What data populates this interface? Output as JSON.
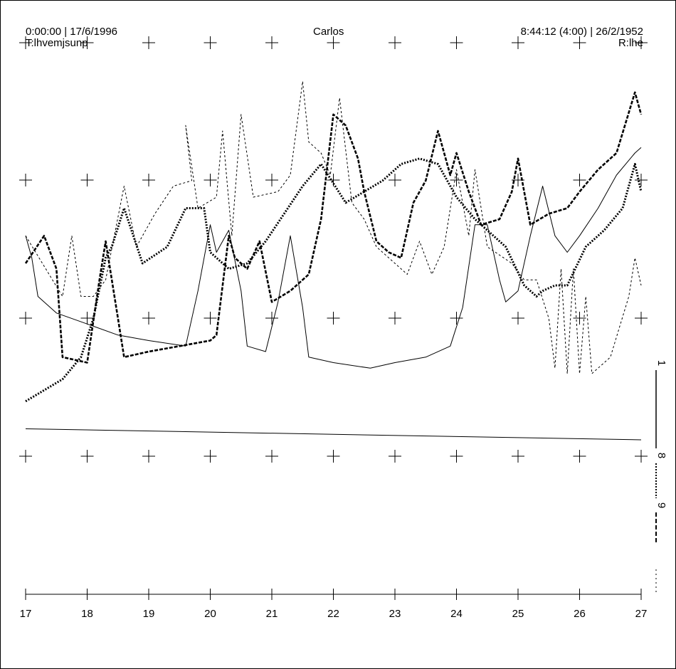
{
  "header": {
    "left_line1": "0:00:00 | 17/6/1996",
    "left_line2": "T:lhvemjsunp",
    "center": "Carlos",
    "right_line1": "8:44:12 (4:00) | 26/2/1952",
    "right_line2": "R:lhe"
  },
  "chart_data": {
    "type": "line",
    "title": "",
    "xlabel": "",
    "ylabel": "",
    "xlim": [
      17,
      27
    ],
    "ylim": [
      0,
      10
    ],
    "grid": "crosshair-markers",
    "x_ticks": [
      "17",
      "18",
      "19",
      "20",
      "21",
      "22",
      "23",
      "24",
      "25",
      "26",
      "27"
    ],
    "right_labels": [
      "1",
      "8",
      "9"
    ],
    "series": [
      {
        "style": "dotted-thin",
        "points": [
          [
            17,
            6.5
          ],
          [
            17.6,
            5.4
          ],
          [
            17.75,
            6.5
          ],
          [
            17.9,
            5.4
          ],
          [
            18.1,
            5.4
          ],
          [
            18.3,
            5.7
          ],
          [
            18.6,
            7.4
          ],
          [
            18.8,
            6.3
          ],
          [
            19.1,
            6.9
          ],
          [
            19.4,
            7.4
          ],
          [
            19.7,
            7.5
          ],
          [
            19.6,
            8.5
          ],
          [
            19.8,
            7.0
          ],
          [
            20.1,
            7.2
          ],
          [
            20.2,
            8.4
          ],
          [
            20.35,
            6.5
          ],
          [
            20.5,
            8.7
          ],
          [
            20.7,
            7.2
          ],
          [
            21.1,
            7.3
          ],
          [
            21.3,
            7.6
          ],
          [
            21.5,
            9.3
          ],
          [
            21.6,
            8.2
          ],
          [
            21.8,
            8.0
          ],
          [
            21.95,
            7.6
          ],
          [
            22.1,
            9.0
          ],
          [
            22.3,
            7.1
          ],
          [
            22.5,
            6.8
          ],
          [
            22.7,
            6.3
          ],
          [
            23.0,
            6.0
          ],
          [
            23.2,
            5.8
          ],
          [
            23.4,
            6.4
          ],
          [
            23.6,
            5.8
          ],
          [
            23.8,
            6.3
          ],
          [
            24.0,
            7.7
          ],
          [
            24.2,
            6.5
          ],
          [
            24.3,
            7.7
          ],
          [
            24.5,
            6.3
          ],
          [
            24.9,
            6.0
          ],
          [
            25.1,
            5.7
          ],
          [
            25.3,
            5.7
          ],
          [
            25.5,
            5.0
          ],
          [
            25.6,
            4.1
          ],
          [
            25.7,
            5.9
          ],
          [
            25.8,
            4.0
          ],
          [
            25.9,
            5.9
          ],
          [
            26.0,
            4.0
          ],
          [
            26.1,
            5.4
          ],
          [
            26.2,
            4.0
          ],
          [
            26.5,
            4.3
          ],
          [
            26.8,
            5.4
          ],
          [
            26.9,
            6.1
          ],
          [
            27,
            5.6
          ]
        ]
      },
      {
        "style": "dashed-thick",
        "points": [
          [
            17,
            6.0
          ],
          [
            17.3,
            6.5
          ],
          [
            17.5,
            5.9
          ],
          [
            17.6,
            4.3
          ],
          [
            18,
            4.2
          ],
          [
            18.2,
            5.7
          ],
          [
            18.3,
            6.4
          ],
          [
            18.5,
            5.0
          ],
          [
            18.6,
            4.3
          ],
          [
            19,
            4.4
          ],
          [
            19.5,
            4.5
          ],
          [
            20,
            4.6
          ],
          [
            20.1,
            4.7
          ],
          [
            20.3,
            6.5
          ],
          [
            20.4,
            6.1
          ],
          [
            20.6,
            5.9
          ],
          [
            20.8,
            6.4
          ],
          [
            21,
            5.3
          ],
          [
            21.3,
            5.5
          ],
          [
            21.6,
            5.8
          ],
          [
            21.8,
            6.8
          ],
          [
            22,
            8.7
          ],
          [
            22.2,
            8.5
          ],
          [
            22.4,
            7.9
          ],
          [
            22.5,
            7.3
          ],
          [
            22.7,
            6.4
          ],
          [
            22.9,
            6.2
          ],
          [
            23.1,
            6.1
          ],
          [
            23.3,
            7.1
          ],
          [
            23.5,
            7.5
          ],
          [
            23.7,
            8.4
          ],
          [
            23.9,
            7.6
          ],
          [
            24.0,
            8.0
          ],
          [
            24.2,
            7.3
          ],
          [
            24.4,
            6.7
          ],
          [
            24.7,
            6.8
          ],
          [
            24.9,
            7.3
          ],
          [
            25.0,
            7.9
          ],
          [
            25.2,
            6.7
          ],
          [
            25.5,
            6.9
          ],
          [
            25.8,
            7.0
          ],
          [
            26.0,
            7.3
          ],
          [
            26.3,
            7.7
          ],
          [
            26.6,
            8.0
          ],
          [
            26.9,
            9.1
          ],
          [
            27,
            8.7
          ]
        ]
      },
      {
        "style": "dotted-thick",
        "points": [
          [
            17,
            3.5
          ],
          [
            17.3,
            3.7
          ],
          [
            17.6,
            3.9
          ],
          [
            17.9,
            4.3
          ],
          [
            18.1,
            5.0
          ],
          [
            18.3,
            6.1
          ],
          [
            18.4,
            6.3
          ],
          [
            18.6,
            7.0
          ],
          [
            18.9,
            6.0
          ],
          [
            19.3,
            6.3
          ],
          [
            19.6,
            7.0
          ],
          [
            19.9,
            7.0
          ],
          [
            20.0,
            6.2
          ],
          [
            20.3,
            5.9
          ],
          [
            20.6,
            6.0
          ],
          [
            20.9,
            6.4
          ],
          [
            21.2,
            6.9
          ],
          [
            21.5,
            7.4
          ],
          [
            21.8,
            7.8
          ],
          [
            22.2,
            7.1
          ],
          [
            22.5,
            7.3
          ],
          [
            22.8,
            7.5
          ],
          [
            23.1,
            7.8
          ],
          [
            23.4,
            7.9
          ],
          [
            23.7,
            7.8
          ],
          [
            24.0,
            7.2
          ],
          [
            24.3,
            6.8
          ],
          [
            24.5,
            6.6
          ],
          [
            24.8,
            6.3
          ],
          [
            25.1,
            5.6
          ],
          [
            25.3,
            5.4
          ],
          [
            25.4,
            5.5
          ],
          [
            25.6,
            5.6
          ],
          [
            25.8,
            5.6
          ],
          [
            26.1,
            6.3
          ],
          [
            26.4,
            6.6
          ],
          [
            26.7,
            7.0
          ],
          [
            26.9,
            7.8
          ],
          [
            27,
            7.3
          ]
        ]
      },
      {
        "style": "solid-thin",
        "points": [
          [
            17,
            6.5
          ],
          [
            17.1,
            6.1
          ],
          [
            17.2,
            5.4
          ],
          [
            17.5,
            5.1
          ],
          [
            18,
            4.9
          ],
          [
            18.5,
            4.7
          ],
          [
            19,
            4.6
          ],
          [
            19.6,
            4.5
          ],
          [
            19.8,
            5.5
          ],
          [
            20,
            6.7
          ],
          [
            20.1,
            6.2
          ],
          [
            20.3,
            6.6
          ],
          [
            20.5,
            5.5
          ],
          [
            20.6,
            4.5
          ],
          [
            20.9,
            4.4
          ],
          [
            21.1,
            5.3
          ],
          [
            21.3,
            6.5
          ],
          [
            21.5,
            5.2
          ],
          [
            21.6,
            4.3
          ],
          [
            22.0,
            4.2
          ],
          [
            22.6,
            4.1
          ],
          [
            23.0,
            4.2
          ],
          [
            23.5,
            4.3
          ],
          [
            23.9,
            4.5
          ],
          [
            24.1,
            5.2
          ],
          [
            24.3,
            6.7
          ],
          [
            24.5,
            6.7
          ],
          [
            24.7,
            5.7
          ],
          [
            24.8,
            5.3
          ],
          [
            25.0,
            5.5
          ],
          [
            25.2,
            6.5
          ],
          [
            25.4,
            7.4
          ],
          [
            25.6,
            6.5
          ],
          [
            25.8,
            6.2
          ],
          [
            26.0,
            6.5
          ],
          [
            26.3,
            7.0
          ],
          [
            26.6,
            7.6
          ],
          [
            26.9,
            8.0
          ],
          [
            27,
            8.1
          ]
        ]
      },
      {
        "style": "solid-flat",
        "points": [
          [
            17,
            3.0
          ],
          [
            27,
            2.8
          ]
        ]
      }
    ]
  }
}
